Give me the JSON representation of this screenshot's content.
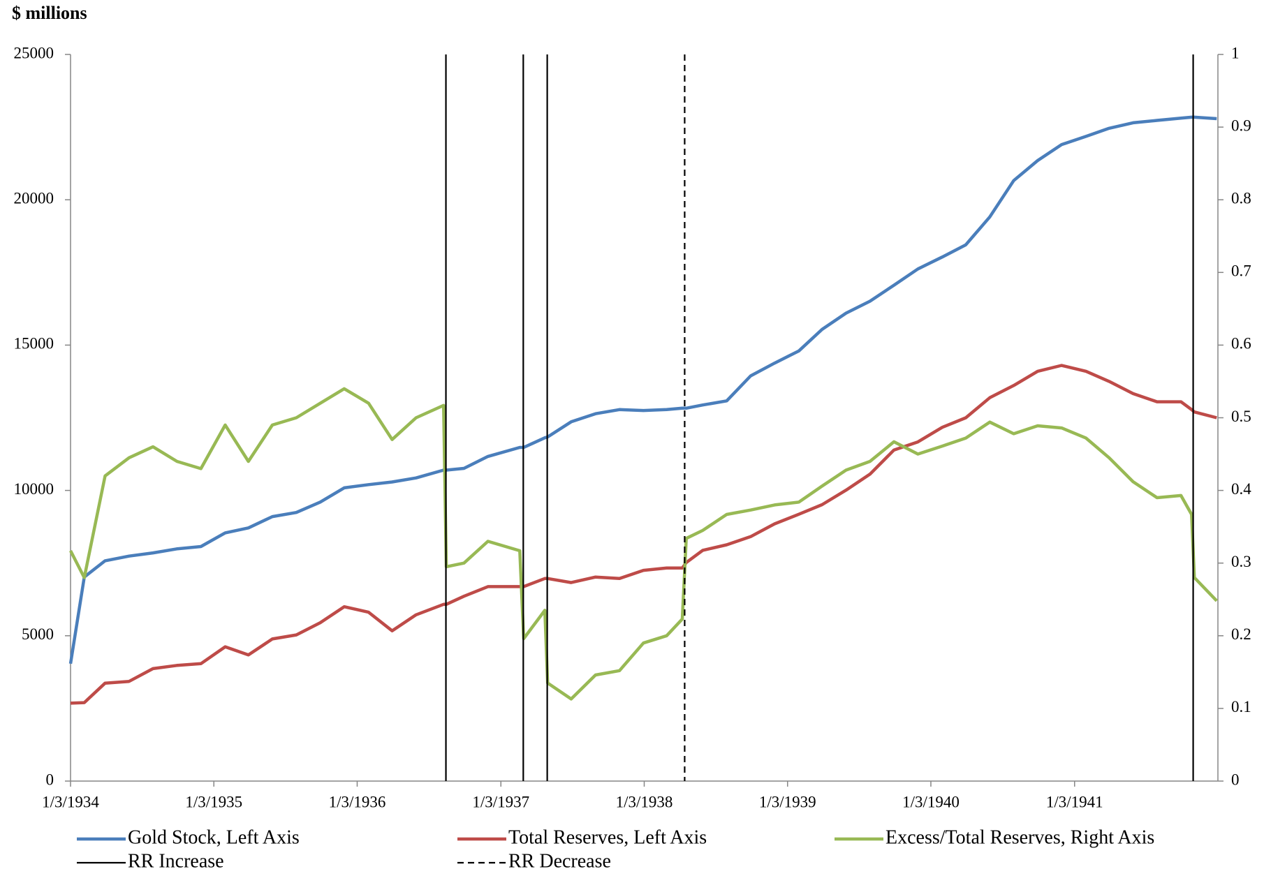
{
  "chart_data": {
    "type": "line",
    "title": "$ millions",
    "x": [
      "1934-01-03",
      "1934-02-07",
      "1934-04-01",
      "1934-06-01",
      "1934-08-01",
      "1934-10-01",
      "1934-12-01",
      "1935-02-01",
      "1935-04-01",
      "1935-06-01",
      "1935-08-01",
      "1935-10-01",
      "1935-12-01",
      "1936-02-01",
      "1936-04-01",
      "1936-06-01",
      "1936-08-10",
      "1936-08-17",
      "1936-10-01",
      "1936-12-01",
      "1937-02-20",
      "1937-03-02",
      "1937-04-25",
      "1937-05-02",
      "1937-07-01",
      "1937-09-01",
      "1937-11-01",
      "1938-01-01",
      "1938-03-01",
      "1938-04-10",
      "1938-04-20",
      "1938-06-01",
      "1938-08-01",
      "1938-10-01",
      "1938-12-01",
      "1939-02-01",
      "1939-04-01",
      "1939-06-01",
      "1939-08-01",
      "1939-10-01",
      "1939-12-01",
      "1940-02-01",
      "1940-04-01",
      "1940-06-01",
      "1940-08-01",
      "1940-10-01",
      "1940-12-01",
      "1941-02-01",
      "1941-04-01",
      "1941-06-01",
      "1941-08-01",
      "1941-10-01",
      "1941-10-28",
      "1941-11-04",
      "1941-12-31"
    ],
    "series": [
      {
        "name": "Gold Stock, Left Axis",
        "color": "#4a7ebb",
        "axis": "y",
        "values": [
          4040,
          7020,
          7580,
          7740,
          7850,
          7990,
          8070,
          8540,
          8710,
          9100,
          9240,
          9600,
          10090,
          10200,
          10290,
          10430,
          10700,
          10700,
          10760,
          11170,
          11480,
          11480,
          11810,
          11840,
          12360,
          12640,
          12780,
          12750,
          12780,
          12830,
          12830,
          12940,
          13080,
          13940,
          14380,
          14800,
          15540,
          16100,
          16510,
          17060,
          17620,
          18030,
          18450,
          19410,
          20660,
          21350,
          21900,
          22180,
          22460,
          22650,
          22730,
          22810,
          22840,
          22840,
          22790
        ]
      },
      {
        "name": "Total Reserves, Left Axis",
        "color": "#be4b48",
        "axis": "y",
        "values": [
          2680,
          2700,
          3370,
          3430,
          3870,
          3980,
          4040,
          4620,
          4340,
          4890,
          5030,
          5450,
          6000,
          5810,
          5170,
          5720,
          6080,
          6080,
          6360,
          6690,
          6690,
          6690,
          6970,
          6970,
          6830,
          7020,
          6970,
          7250,
          7330,
          7330,
          7520,
          7940,
          8130,
          8410,
          8850,
          9180,
          9510,
          10010,
          10560,
          11390,
          11670,
          12170,
          12500,
          13190,
          13610,
          14100,
          14300,
          14100,
          13750,
          13330,
          13050,
          13050,
          12780,
          12700,
          12500
        ]
      },
      {
        "name": "Excess/Total Reserves, Right Axis",
        "color": "#98b954",
        "axis": "y2",
        "values": [
          0.317,
          0.28,
          0.42,
          0.445,
          0.46,
          0.44,
          0.43,
          0.49,
          0.44,
          0.49,
          0.5,
          0.52,
          0.54,
          0.52,
          0.47,
          0.5,
          0.517,
          0.295,
          0.3,
          0.33,
          0.317,
          0.196,
          0.235,
          0.135,
          0.113,
          0.146,
          0.152,
          0.19,
          0.2,
          0.223,
          0.334,
          0.345,
          0.367,
          0.373,
          0.38,
          0.384,
          0.406,
          0.428,
          0.44,
          0.467,
          0.45,
          0.461,
          0.472,
          0.494,
          0.478,
          0.489,
          0.486,
          0.472,
          0.445,
          0.412,
          0.39,
          0.393,
          0.367,
          0.28,
          0.248
        ]
      }
    ],
    "reference_lines": [
      {
        "name": "RR Increase",
        "style": "solid",
        "color": "#000000",
        "x": [
          "1936-08-16",
          "1937-03-01",
          "1937-05-01",
          "1941-11-01"
        ]
      },
      {
        "name": "RR Decrease",
        "style": "dashed",
        "color": "#000000",
        "x": [
          "1938-04-16"
        ]
      }
    ],
    "xlim": [
      "1934-01-03",
      "1942-01-03"
    ],
    "xticks": [
      {
        "value": "1934-01-03",
        "label": "1/3/1934"
      },
      {
        "value": "1935-01-03",
        "label": "1/3/1935"
      },
      {
        "value": "1936-01-03",
        "label": "1/3/1936"
      },
      {
        "value": "1937-01-03",
        "label": "1/3/1937"
      },
      {
        "value": "1938-01-03",
        "label": "1/3/1938"
      },
      {
        "value": "1939-01-03",
        "label": "1/3/1939"
      },
      {
        "value": "1940-01-03",
        "label": "1/3/1940"
      },
      {
        "value": "1941-01-03",
        "label": "1/3/1941"
      }
    ],
    "ylim": [
      0,
      25000
    ],
    "yticks": [
      0,
      5000,
      10000,
      15000,
      20000,
      25000
    ],
    "y2lim": [
      0,
      1
    ],
    "y2ticks": [
      0,
      0.1,
      0.2,
      0.3,
      0.4,
      0.5,
      0.6,
      0.7,
      0.8,
      0.9,
      1
    ],
    "grid": false
  }
}
